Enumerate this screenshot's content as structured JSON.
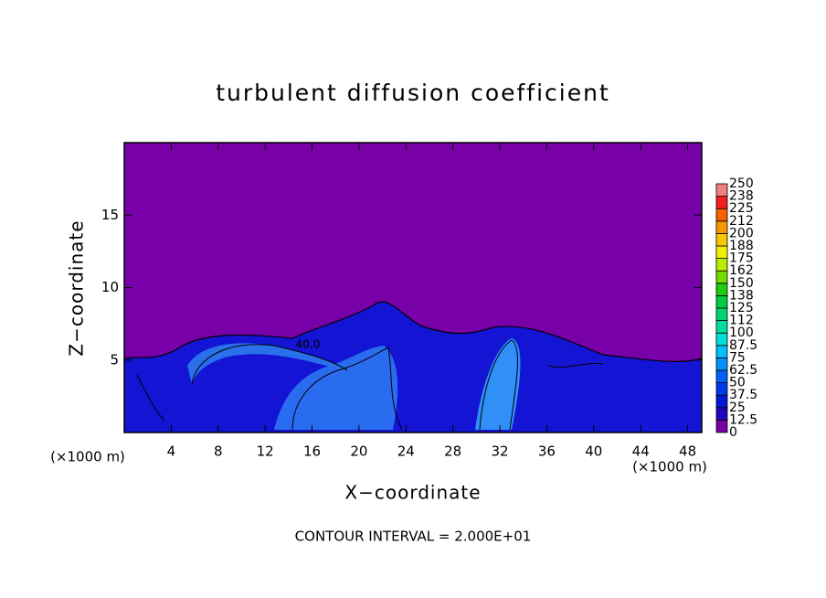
{
  "chart_data": {
    "type": "contour",
    "title": "turbulent diffusion coefficient",
    "xlabel": "X−coordinate",
    "ylabel": "Z−coordinate",
    "x_unit_left": "(×1000 m)",
    "x_unit_right": "(×1000 m)",
    "footer": "CONTOUR INTERVAL = 2.000E+01",
    "contour_label": "40.0",
    "xlim": [
      0,
      49.2
    ],
    "ylim": [
      0,
      20
    ],
    "xticks": [
      4,
      8,
      12,
      16,
      20,
      24,
      28,
      32,
      36,
      40,
      44,
      48
    ],
    "yticks": [
      5,
      10,
      15
    ],
    "background_color": "#7800a8",
    "colorbar": {
      "ticks": [
        0,
        12.5,
        25,
        37.5,
        50,
        62.5,
        75,
        87.5,
        100,
        {
          "value": 112.5,
          "label": "112"
        },
        125,
        {
          "value": 137.5,
          "label": "138"
        },
        150,
        {
          "value": 162.5,
          "label": "162"
        },
        175,
        {
          "value": 187.5,
          "label": "188"
        },
        200,
        {
          "value": 212.5,
          "label": "212"
        },
        225,
        {
          "value": 237.5,
          "label": "238"
        },
        250
      ],
      "colors": [
        "#7800a8",
        "#2400c0",
        "#0018d8",
        "#0038ec",
        "#0060f8",
        "#0090ff",
        "#00c0f8",
        "#00e0d8",
        "#00dca0",
        "#00d470",
        "#00cc40",
        "#20cc10",
        "#70dc00",
        "#b8ec00",
        "#f0f000",
        "#f8c800",
        "#f89800",
        "#f86000",
        "#f02020",
        "#f08080"
      ]
    }
  }
}
